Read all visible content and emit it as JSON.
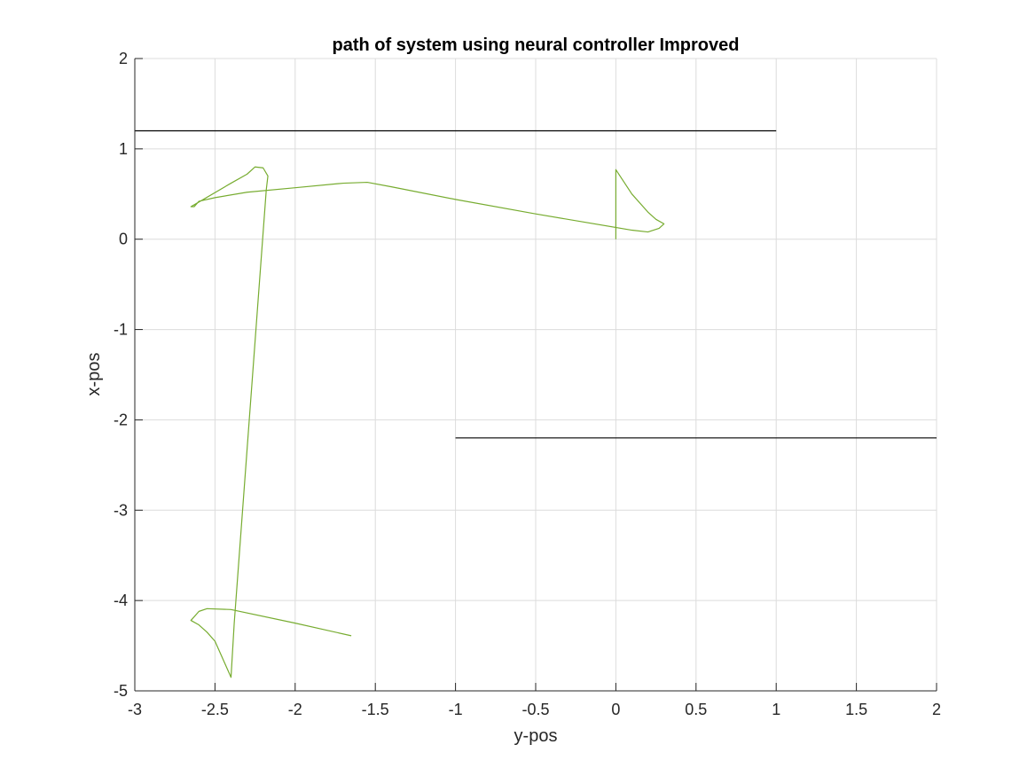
{
  "chart_data": {
    "type": "line",
    "title": "path of system using neural controller Improved",
    "xlabel": "y-pos",
    "ylabel": "x-pos",
    "xlim": [
      -3,
      2
    ],
    "ylim": [
      -5,
      2
    ],
    "xticks": [
      -3,
      -2.5,
      -2,
      -1.5,
      -1,
      -0.5,
      0,
      0.5,
      1,
      1.5,
      2
    ],
    "xtick_labels": [
      "-3",
      "-2.5",
      "-2",
      "-1.5",
      "-1",
      "-0.5",
      "0",
      "0.5",
      "1",
      "1.5",
      "2"
    ],
    "yticks": [
      -5,
      -4,
      -3,
      -2,
      -1,
      0,
      1,
      2
    ],
    "ytick_labels": [
      "-5",
      "-4",
      "-3",
      "-2",
      "-1",
      "0",
      "1",
      "2"
    ],
    "grid": true,
    "box": true,
    "series": [
      {
        "color": "#77ac30",
        "x": [
          0,
          0,
          0.1,
          0.2,
          0.25,
          0.3,
          0.27,
          0.2,
          0.1,
          -0.5,
          -1,
          -1.4,
          -1.55,
          -1.7,
          -2,
          -2.3,
          -2.5,
          -2.6,
          -2.63,
          -2.65,
          -2.4,
          -2.3,
          -2.25,
          -2.2,
          -2.17,
          -2.18,
          -2.38,
          -2.4,
          -2.5,
          -2.55,
          -2.6,
          -2.65,
          -2.6,
          -2.55,
          -2.4,
          -2.0,
          -1.65
        ],
        "y": [
          0,
          0.77,
          0.5,
          0.3,
          0.22,
          0.17,
          0.12,
          0.08,
          0.1,
          0.28,
          0.44,
          0.58,
          0.63,
          0.62,
          0.57,
          0.52,
          0.46,
          0.42,
          0.36,
          0.36,
          0.62,
          0.72,
          0.8,
          0.79,
          0.7,
          0.55,
          -4.25,
          -4.85,
          -4.45,
          -4.35,
          -4.27,
          -4.22,
          -4.12,
          -4.09,
          -4.1,
          -4.25,
          -4.39
        ]
      },
      {
        "color": "#000000",
        "x": [
          -3,
          1
        ],
        "y": [
          1.2,
          1.2
        ]
      },
      {
        "color": "#000000",
        "x": [
          -1,
          2
        ],
        "y": [
          -2.2,
          -2.2
        ]
      }
    ]
  }
}
